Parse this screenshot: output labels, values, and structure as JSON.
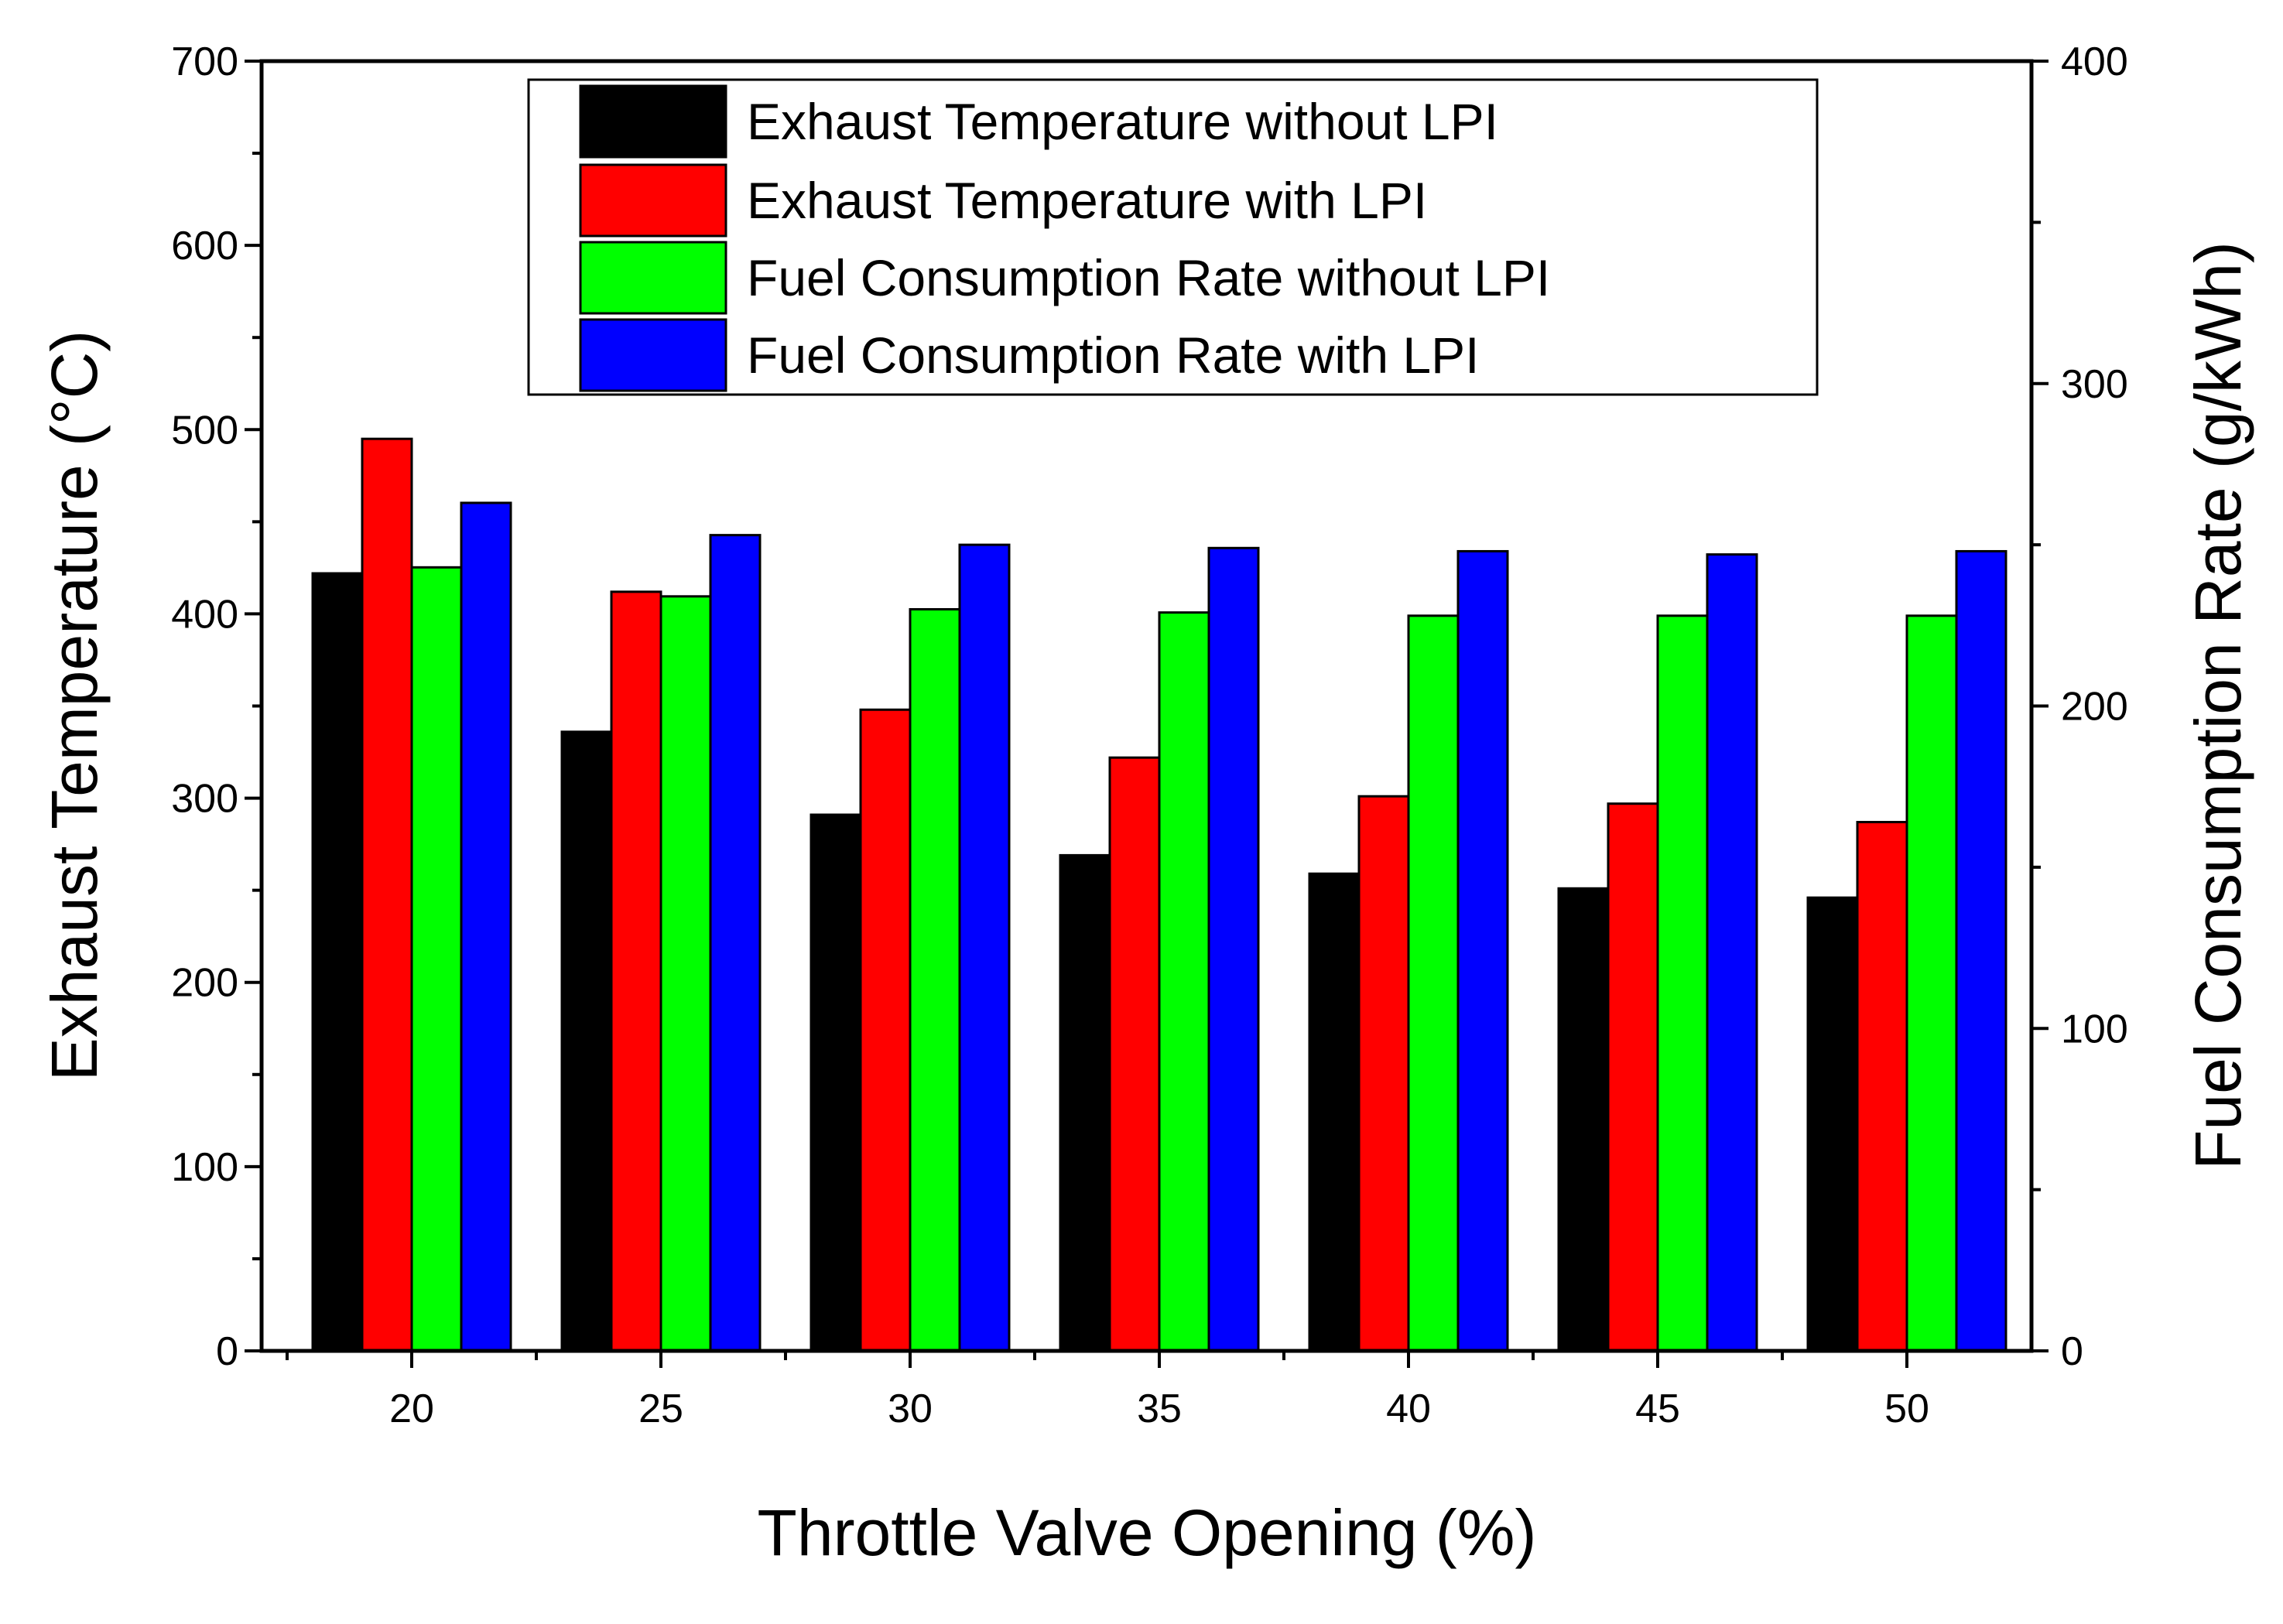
{
  "chart_data": {
    "type": "bar",
    "categories": [
      "20",
      "25",
      "30",
      "35",
      "40",
      "45",
      "50"
    ],
    "xlabel": "Throttle Valve Opening (%)",
    "ylabel_left": "Exhaust Temperature (°C)",
    "ylabel_right": "Fuel Consumption Rate (g/kWh)",
    "ylim_left": [
      0,
      700
    ],
    "ylim_right": [
      0,
      400
    ],
    "yticks_left": [
      "0",
      "100",
      "200",
      "300",
      "400",
      "500",
      "600",
      "700"
    ],
    "yticks_right": [
      "0",
      "100",
      "200",
      "300",
      "400"
    ],
    "grid": false,
    "legend_position": "top-center",
    "series": [
      {
        "name": "Exhaust Temperature without LPI",
        "axis": "left",
        "color": "#000000",
        "values": [
          422,
          336,
          291,
          269,
          259,
          251,
          246
        ]
      },
      {
        "name": "Exhaust Temperature with LPI",
        "axis": "left",
        "color": "#ff0000",
        "values": [
          495,
          412,
          348,
          322,
          301,
          297,
          287
        ]
      },
      {
        "name": "Fuel Consumption Rate without LPI",
        "axis": "right",
        "color": "#00ff00",
        "values": [
          243,
          234,
          230,
          229,
          228,
          228,
          228
        ]
      },
      {
        "name": "Fuel Consumption Rate with LPI",
        "axis": "right",
        "color": "#0000ff",
        "values": [
          263,
          253,
          250,
          249,
          248,
          247,
          248
        ]
      }
    ]
  }
}
